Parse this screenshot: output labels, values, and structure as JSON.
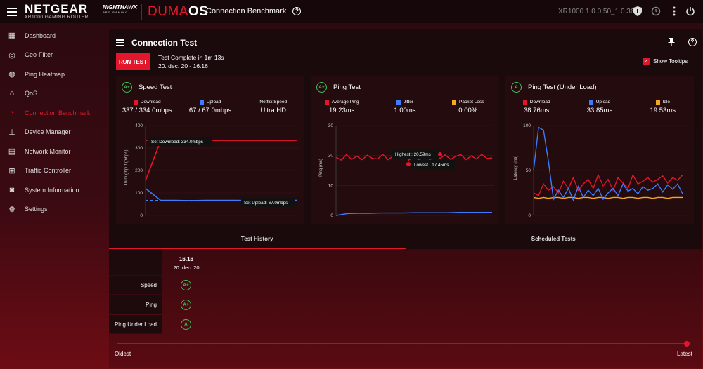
{
  "header": {
    "brand": "NETGEAR",
    "brand_sub": "XR1000 GAMING ROUTER",
    "nighthawk": "NIGHTHAWK",
    "nighthawk_sub": "PRO GAMING",
    "duma_a": "DUMA",
    "duma_b": "OS",
    "page_title": "Connection Benchmark",
    "help": "?",
    "firmware": "XR1000 1.0.0.50_1.0.36"
  },
  "sidebar": {
    "items": [
      {
        "label": "Dashboard",
        "icon": "dashboard-icon"
      },
      {
        "label": "Geo-Filter",
        "icon": "geo-filter-icon"
      },
      {
        "label": "Ping Heatmap",
        "icon": "ping-heatmap-icon"
      },
      {
        "label": "QoS",
        "icon": "qos-icon"
      },
      {
        "label": "Connection Benchmark",
        "icon": "benchmark-icon"
      },
      {
        "label": "Device Manager",
        "icon": "device-manager-icon"
      },
      {
        "label": "Network Monitor",
        "icon": "network-monitor-icon"
      },
      {
        "label": "Traffic Controller",
        "icon": "traffic-controller-icon"
      },
      {
        "label": "System Information",
        "icon": "system-info-icon"
      },
      {
        "label": "Settings",
        "icon": "settings-icon"
      }
    ]
  },
  "panel": {
    "title": "Connection Test",
    "run_button": "RUN TEST",
    "status_line1": "Test Complete in 1m 13s",
    "status_line2": "20. dec. 20 - 16.16",
    "show_tooltips": "Show Tooltips"
  },
  "colors": {
    "accent": "#e2172b",
    "download": "#e2172b",
    "upload": "#3d7bff",
    "idle": "#f5a623",
    "grade": "#3ac55b"
  },
  "cards": {
    "speed": {
      "grade": "A+",
      "title": "Speed Test",
      "legend": [
        {
          "label": "Download",
          "value": "337 / 334.0mbps"
        },
        {
          "label": "Upload",
          "value": "67 / 67.0mbps"
        },
        {
          "label": "Netflix Speed",
          "value": "Ultra HD"
        }
      ],
      "ylabel": "Throughput (mbps)",
      "ticks": [
        "400",
        "300",
        "200",
        "100",
        "0"
      ],
      "tooltip_download": "Set Download: 334.0mbps",
      "tooltip_upload": "Set Upload: 67.0mbps"
    },
    "ping": {
      "grade": "A+",
      "title": "Ping Test",
      "legend": [
        {
          "label": "Average Ping",
          "value": "19.23ms"
        },
        {
          "label": "Jitter",
          "value": "1.00ms"
        },
        {
          "label": "Packet Loss",
          "value": "0.00%"
        }
      ],
      "ylabel": "Ping (ms)",
      "ticks": [
        "30",
        "20",
        "10",
        "0"
      ],
      "tooltip_high": "Highest : 20.59ms",
      "tooltip_low": "Lowest : 17.45ms"
    },
    "load": {
      "grade": "A",
      "title": "Ping Test (Under Load)",
      "legend": [
        {
          "label": "Download",
          "value": "38.76ms"
        },
        {
          "label": "Upload",
          "value": "33.85ms"
        },
        {
          "label": "Idle",
          "value": "19.53ms"
        }
      ],
      "ylabel": "Latency (ms)",
      "ticks": [
        "100",
        "50",
        "0"
      ]
    }
  },
  "tabs": {
    "history": "Test History",
    "scheduled": "Scheduled Tests"
  },
  "history": {
    "rows": [
      "Speed",
      "Ping",
      "Ping Under Load"
    ],
    "time": "16.16",
    "date": "20. dec. 20",
    "grades": [
      "A+",
      "A+",
      "A"
    ],
    "oldest": "Oldest",
    "latest": "Latest"
  },
  "chart_data": [
    {
      "type": "line",
      "ylabel": "Throughput (mbps)",
      "ylim": [
        0,
        400
      ],
      "series": [
        {
          "name": "Download",
          "values": [
            155,
            334,
            334,
            334,
            334,
            334,
            334,
            334,
            334,
            334,
            334
          ]
        },
        {
          "name": "Upload",
          "values": [
            120,
            67,
            67,
            66,
            67,
            67,
            67,
            66,
            67,
            67,
            67
          ]
        }
      ]
    },
    {
      "type": "line",
      "ylabel": "Ping (ms)",
      "ylim": [
        0,
        30
      ],
      "series": [
        {
          "name": "Average Ping",
          "values": [
            19.4,
            18.5,
            20.3,
            18.7,
            19.8,
            18.6,
            20.1,
            19.0,
            18.9,
            20.4,
            18.6,
            19.8,
            19.3,
            20.5,
            18.5,
            19.7,
            18.4,
            20.6,
            18.6,
            19.5,
            19.1,
            20.2,
            18.7,
            19.7,
            20.3,
            18.6,
            19.9,
            18.8,
            20.4,
            19.0,
            19.2
          ]
        },
        {
          "name": "Jitter",
          "values": [
            0.0,
            0.6,
            0.7,
            0.7,
            0.8,
            0.8,
            0.8,
            0.9,
            0.9,
            0.9,
            0.9,
            1.0,
            1.0,
            1.0,
            1.0
          ]
        }
      ]
    },
    {
      "type": "line",
      "ylabel": "Latency (ms)",
      "ylim": [
        0,
        100
      ],
      "series": [
        {
          "name": "Download",
          "values": [
            25,
            22,
            35,
            28,
            32,
            25,
            38,
            30,
            42,
            28,
            35,
            40,
            30,
            45,
            33,
            40,
            28,
            42,
            36,
            30,
            45,
            35,
            38,
            42,
            37,
            40,
            44,
            36,
            42,
            39,
            45
          ]
        },
        {
          "name": "Upload",
          "values": [
            50,
            98,
            95,
            60,
            18,
            28,
            20,
            30,
            17,
            32,
            20,
            28,
            22,
            30,
            18,
            25,
            30,
            22,
            35,
            27,
            30,
            24,
            32,
            28,
            30,
            35,
            26,
            34,
            29,
            35,
            24
          ]
        },
        {
          "name": "Idle",
          "values": [
            20,
            19,
            20,
            19,
            20,
            20,
            19,
            20,
            20,
            19,
            20,
            20,
            19,
            20,
            20,
            19,
            20,
            20,
            19,
            20,
            20,
            19,
            20,
            20,
            19,
            20,
            20,
            19,
            20,
            20,
            20
          ]
        }
      ]
    }
  ]
}
